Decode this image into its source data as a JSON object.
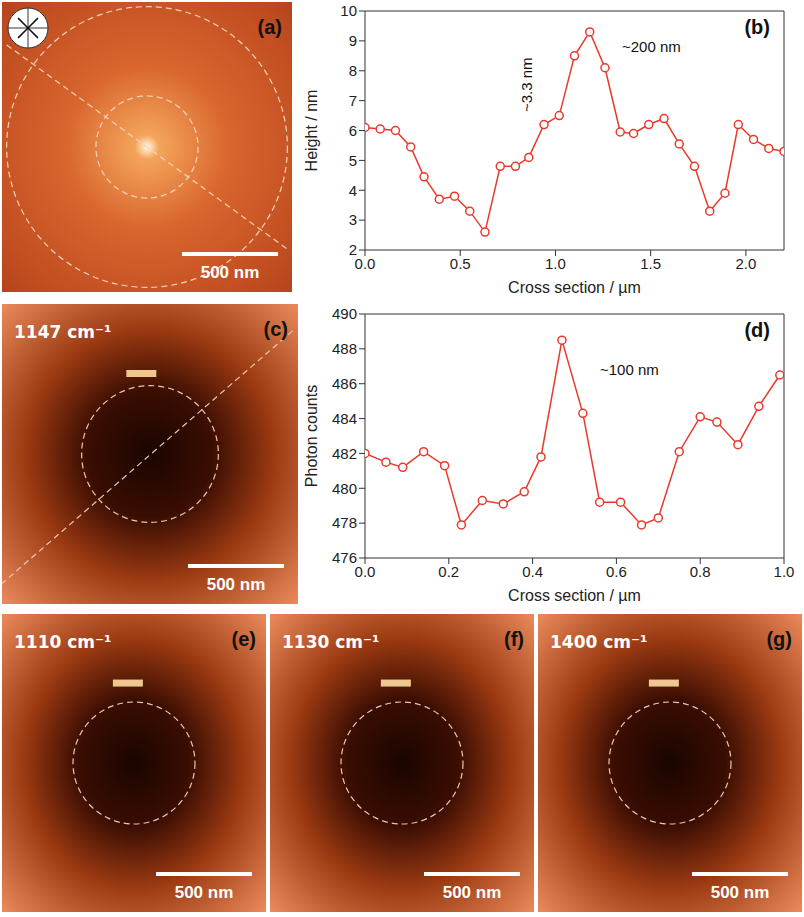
{
  "chart_data": [
    {
      "panel": "(b)",
      "type": "line",
      "color": "#e8392c",
      "marker": "circle",
      "x": [
        0,
        0.08,
        0.16,
        0.24,
        0.31,
        0.39,
        0.47,
        0.55,
        0.63,
        0.71,
        0.79,
        0.86,
        0.94,
        1.02,
        1.1,
        1.18,
        1.26,
        1.34,
        1.41,
        1.49,
        1.57,
        1.65,
        1.73,
        1.81,
        1.89,
        1.96,
        2.04,
        2.12,
        2.2
      ],
      "values": [
        6.1,
        6.05,
        6.0,
        5.45,
        4.45,
        3.7,
        3.8,
        3.3,
        2.6,
        4.8,
        4.8,
        5.1,
        6.2,
        6.5,
        8.5,
        9.3,
        8.1,
        5.95,
        5.9,
        6.2,
        6.4,
        5.55,
        4.8,
        3.3,
        3.9,
        6.2,
        5.7,
        5.4,
        5.3
      ],
      "xlim": [
        0,
        2.2
      ],
      "xticks": [
        {
          "value": 0,
          "label": "0.0"
        },
        {
          "value": 0.5,
          "label": "0.5"
        },
        {
          "value": 1,
          "label": "1.0"
        },
        {
          "value": 1.5,
          "label": "1.5"
        },
        {
          "value": 2,
          "label": "2.0"
        }
      ],
      "ylim": [
        2,
        10
      ],
      "yticks": [
        2,
        3,
        4,
        5,
        6,
        7,
        8,
        9,
        10
      ],
      "x_label": "Cross section / µm",
      "y_label": "Height / nm",
      "annotations": [
        "~3.3 nm",
        "~200 nm"
      ]
    },
    {
      "panel": "(d)",
      "type": "line",
      "color": "#e8392c",
      "marker": "circle",
      "x": [
        0,
        0.05,
        0.09,
        0.14,
        0.19,
        0.23,
        0.28,
        0.33,
        0.38,
        0.42,
        0.47,
        0.52,
        0.56,
        0.61,
        0.66,
        0.7,
        0.75,
        0.8,
        0.84,
        0.89,
        0.94,
        0.99
      ],
      "values": [
        482,
        481.5,
        481.2,
        482.1,
        481.3,
        477.9,
        479.3,
        479.1,
        479.8,
        481.8,
        488.5,
        484.3,
        479.2,
        479.2,
        477.9,
        478.3,
        482.1,
        484.1,
        483.8,
        482.5,
        484.7,
        486.5
      ],
      "xlim": [
        0,
        1.0
      ],
      "xticks": [
        {
          "value": 0,
          "label": "0.0"
        },
        {
          "value": 0.2,
          "label": "0.2"
        },
        {
          "value": 0.4,
          "label": "0.4"
        },
        {
          "value": 0.6,
          "label": "0.6"
        },
        {
          "value": 0.8,
          "label": "0.8"
        },
        {
          "value": 1,
          "label": "1.0"
        }
      ],
      "ylim": [
        476,
        490
      ],
      "yticks": [
        476,
        478,
        480,
        482,
        484,
        486,
        488,
        490
      ],
      "x_label": "Cross section / µm",
      "y_label": "Photon counts",
      "annotations": [
        "~100 nm"
      ]
    }
  ],
  "images": [
    {
      "panel": "(a)",
      "scale_bar": "500 nm"
    },
    {
      "panel": "(c)",
      "label": "1147 cm⁻¹",
      "scale_bar": "500 nm"
    },
    {
      "panel": "(e)",
      "label": "1110 cm⁻¹",
      "scale_bar": "500 nm"
    },
    {
      "panel": "(f)",
      "label": "1130 cm⁻¹",
      "scale_bar": "500 nm"
    },
    {
      "panel": "(g)",
      "label": "1400 cm⁻¹",
      "scale_bar": "500 nm"
    }
  ]
}
